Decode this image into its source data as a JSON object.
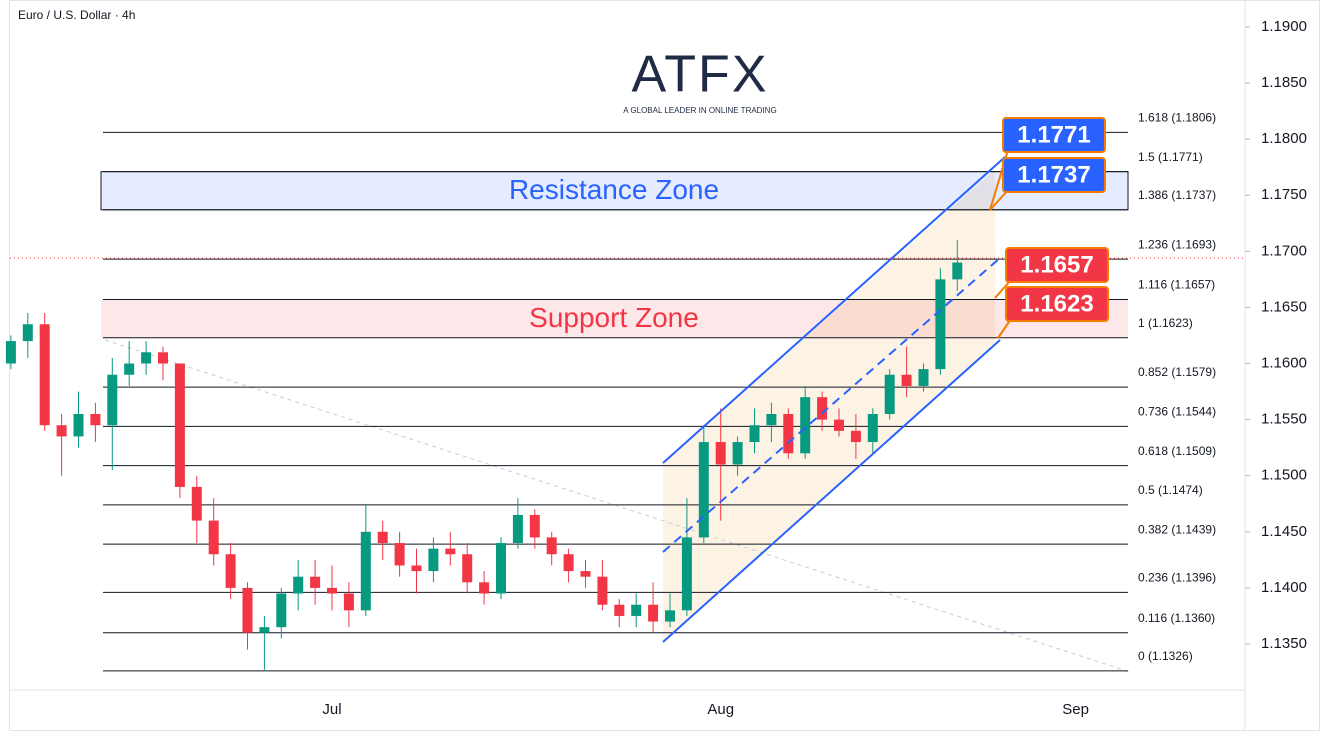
{
  "chart_data": {
    "type": "candlestick",
    "title": "Euro / U.S. Dollar · 4h",
    "logo_text": "ATFX",
    "logo_tagline": "A GLOBAL LEADER IN ONLINE TRADING",
    "up_color": "#089981",
    "down_color": "#f23645",
    "categories": [
      null,
      null,
      null,
      null,
      null,
      null,
      null,
      null,
      null,
      null,
      null,
      null,
      null,
      null,
      null,
      null,
      null,
      null,
      null,
      "Jul",
      null,
      null,
      null,
      null,
      null,
      null,
      null,
      null,
      null,
      null,
      null,
      null,
      null,
      null,
      null,
      null,
      null,
      null,
      null,
      null,
      null,
      null,
      "Aug",
      null,
      null,
      null,
      null,
      null,
      null,
      null,
      null,
      null,
      null,
      null,
      null,
      null,
      null,
      null,
      null,
      null,
      null,
      null,
      null,
      "Sep",
      null,
      null,
      null,
      null,
      null,
      null,
      null,
      null,
      null
    ],
    "open": [
      1.16,
      1.162,
      1.1635,
      1.1545,
      1.1535,
      1.1555,
      1.1545,
      1.159,
      1.16,
      1.161,
      1.16,
      1.149,
      1.146,
      1.143,
      1.14,
      1.136,
      1.1365,
      1.1395,
      1.141,
      1.14,
      1.1395,
      1.138,
      1.145,
      1.144,
      1.142,
      1.1415,
      1.1435,
      1.143,
      1.1405,
      1.1395,
      1.144,
      1.1465,
      1.1445,
      1.143,
      1.1415,
      1.141,
      1.1385,
      1.1375,
      1.1385,
      1.137,
      1.138,
      1.1445,
      1.153,
      1.151,
      1.153,
      1.1545,
      1.1555,
      1.152,
      1.157,
      1.155,
      1.154,
      1.153,
      1.1555,
      1.159,
      1.158,
      1.1595,
      1.1675,
      null,
      null,
      null,
      null,
      null,
      null,
      null,
      null,
      null,
      null,
      null,
      null,
      null,
      null,
      null,
      null
    ],
    "high": [
      1.1625,
      1.1645,
      1.1645,
      1.1555,
      1.1575,
      1.1565,
      1.1605,
      1.162,
      1.162,
      1.1615,
      1.16,
      1.15,
      1.148,
      1.144,
      1.1405,
      1.1375,
      1.14,
      1.1425,
      1.1425,
      1.142,
      1.1405,
      1.1475,
      1.146,
      1.145,
      1.1435,
      1.1445,
      1.145,
      1.144,
      1.1415,
      1.1445,
      1.148,
      1.147,
      1.145,
      1.1435,
      1.1425,
      1.1425,
      1.139,
      1.1395,
      1.1405,
      1.1395,
      1.148,
      1.1545,
      1.156,
      1.1535,
      1.156,
      1.1565,
      1.156,
      1.158,
      1.1575,
      1.156,
      1.1555,
      1.156,
      1.1595,
      1.1615,
      1.16,
      1.1685,
      1.171,
      null,
      null,
      null,
      null,
      null,
      null,
      null,
      null,
      null,
      null,
      null,
      null,
      null,
      null,
      null,
      null
    ],
    "low": [
      1.1595,
      1.1605,
      1.154,
      1.15,
      1.1525,
      1.153,
      1.1505,
      1.158,
      1.159,
      1.1585,
      1.148,
      1.144,
      1.142,
      1.139,
      1.1345,
      1.1327,
      1.1355,
      1.138,
      1.1385,
      1.138,
      1.1365,
      1.1375,
      1.1425,
      1.141,
      1.1395,
      1.1405,
      1.142,
      1.1395,
      1.1385,
      1.139,
      1.1435,
      1.1435,
      1.142,
      1.1405,
      1.14,
      1.138,
      1.1365,
      1.1365,
      1.136,
      1.1365,
      1.1375,
      1.144,
      1.146,
      1.15,
      1.152,
      1.153,
      1.1515,
      1.1515,
      1.154,
      1.1535,
      1.1515,
      1.152,
      1.155,
      1.157,
      1.1575,
      1.159,
      1.1665,
      null,
      null,
      null,
      null,
      null,
      null,
      null,
      null,
      null,
      null,
      null,
      null,
      null,
      null,
      null,
      null
    ],
    "close": [
      1.162,
      1.1635,
      1.1545,
      1.1535,
      1.1555,
      1.1545,
      1.159,
      1.16,
      1.161,
      1.16,
      1.149,
      1.146,
      1.143,
      1.14,
      1.136,
      1.1365,
      1.1395,
      1.141,
      1.14,
      1.1395,
      1.138,
      1.145,
      1.144,
      1.142,
      1.1415,
      1.1435,
      1.143,
      1.1405,
      1.1395,
      1.144,
      1.1465,
      1.1445,
      1.143,
      1.1415,
      1.141,
      1.1385,
      1.1375,
      1.1385,
      1.137,
      1.138,
      1.1445,
      1.153,
      1.151,
      1.153,
      1.1545,
      1.1555,
      1.152,
      1.157,
      1.155,
      1.154,
      1.153,
      1.1555,
      1.159,
      1.158,
      1.1595,
      1.1675,
      1.169,
      null,
      null,
      null,
      null,
      null,
      null,
      null,
      null,
      null,
      null,
      null,
      null,
      null,
      null,
      null,
      null
    ],
    "ylim": [
      1.1309,
      1.1924
    ],
    "yticks": [
      {
        "value": 1.135,
        "label": "1.1350"
      },
      {
        "value": 1.14,
        "label": "1.1400"
      },
      {
        "value": 1.145,
        "label": "1.1450"
      },
      {
        "value": 1.15,
        "label": "1.1500"
      },
      {
        "value": 1.155,
        "label": "1.1550"
      },
      {
        "value": 1.16,
        "label": "1.1600"
      },
      {
        "value": 1.165,
        "label": "1.1650"
      },
      {
        "value": 1.17,
        "label": "1.1700"
      },
      {
        "value": 1.175,
        "label": "1.1750"
      },
      {
        "value": 1.18,
        "label": "1.1800"
      },
      {
        "value": 1.185,
        "label": "1.1850"
      },
      {
        "value": 1.19,
        "label": "1.1900"
      }
    ],
    "fib_levels": [
      {
        "value": 1.1806,
        "label": "1.618 (1.1806)"
      },
      {
        "value": 1.1771,
        "label": "1.5 (1.1771)"
      },
      {
        "value": 1.1737,
        "label": "1.386 (1.1737)"
      },
      {
        "value": 1.1693,
        "label": "1.236 (1.1693)"
      },
      {
        "value": 1.1657,
        "label": "1.116 (1.1657)"
      },
      {
        "value": 1.1623,
        "label": "1 (1.1623)"
      },
      {
        "value": 1.1579,
        "label": "0.852 (1.1579)"
      },
      {
        "value": 1.1544,
        "label": "0.736 (1.1544)"
      },
      {
        "value": 1.1509,
        "label": "0.618 (1.1509)"
      },
      {
        "value": 1.1474,
        "label": "0.5 (1.1474)"
      },
      {
        "value": 1.1439,
        "label": "0.382 (1.1439)"
      },
      {
        "value": 1.1396,
        "label": "0.236 (1.1396)"
      },
      {
        "value": 1.136,
        "label": "0.116 (1.1360)"
      },
      {
        "value": 1.1326,
        "label": "0 (1.1326)"
      }
    ],
    "zones": [
      {
        "label": "Resistance Zone",
        "range": [
          1.1737,
          1.1771
        ],
        "color": "#2962ff"
      },
      {
        "label": "Support Zone",
        "range": [
          1.1623,
          1.1657
        ],
        "color": "#f23645"
      }
    ],
    "price_tags": [
      {
        "value": 1.1771,
        "color": "#2962ff"
      },
      {
        "value": 1.1737,
        "color": "#2962ff"
      },
      {
        "value": 1.1657,
        "color": "#f23645"
      },
      {
        "value": 1.1623,
        "color": "#f23645"
      }
    ]
  }
}
